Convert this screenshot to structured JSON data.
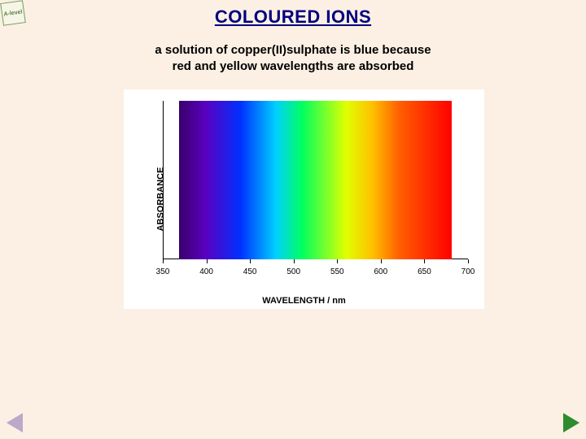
{
  "logo_text": "A-level",
  "title": "COLOURED IONS",
  "subtitle_line1": "a solution of copper(II)sulphate is blue because",
  "subtitle_line2": "red and yellow wavelengths are absorbed",
  "chart": {
    "ylabel": "ABSORBANCE",
    "xlabel": "WAVELENGTH / nm",
    "xlim": [
      350,
      700
    ],
    "xtick_step": 50,
    "xticks": [
      350,
      400,
      450,
      500,
      550,
      600,
      650,
      700
    ],
    "spectrum_range_nm": [
      370,
      680
    ],
    "spectrum_stops": [
      {
        "nm": 370,
        "color": "#3a006b"
      },
      {
        "nm": 400,
        "color": "#5a00c0"
      },
      {
        "nm": 440,
        "color": "#0030ff"
      },
      {
        "nm": 480,
        "color": "#00d0ff"
      },
      {
        "nm": 510,
        "color": "#00ff60"
      },
      {
        "nm": 560,
        "color": "#e0ff00"
      },
      {
        "nm": 590,
        "color": "#ffc000"
      },
      {
        "nm": 620,
        "color": "#ff6000"
      },
      {
        "nm": 680,
        "color": "#ff0000"
      }
    ],
    "background_color": "#ffffff",
    "label_fontsize": 11,
    "tick_fontsize": 10
  },
  "page_background": "#fbf0e3",
  "title_color": "#000080",
  "nav_prev_color": "#bca8c8",
  "nav_next_color": "#2e8b2e"
}
